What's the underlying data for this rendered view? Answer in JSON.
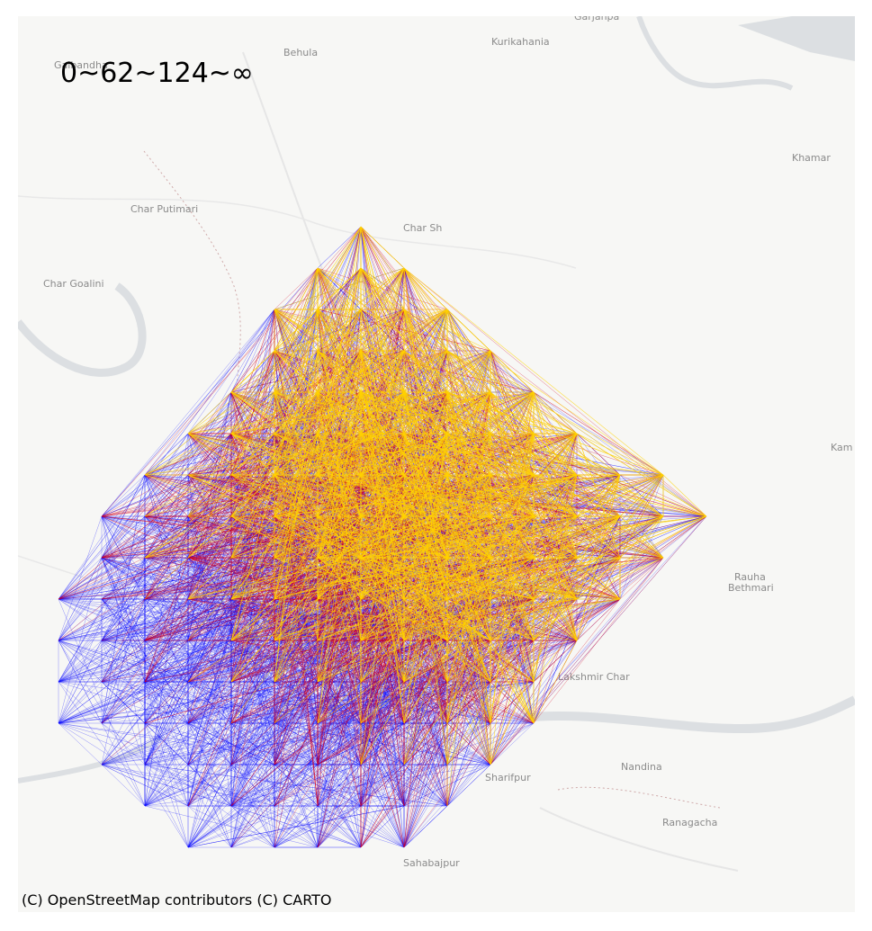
{
  "legend": {
    "text": "0~62~124~∞"
  },
  "attribution": "(C) OpenStreetMap contributors (C) CARTO",
  "place_labels": [
    {
      "id": "garjanpa",
      "text": "Garjanpa"
    },
    {
      "id": "kurikahania",
      "text": "Kurikahania"
    },
    {
      "id": "behula",
      "text": "Behula"
    },
    {
      "id": "gaibandha",
      "text": "Gaibandha"
    },
    {
      "id": "char-putimari",
      "text": "Char Putimari"
    },
    {
      "id": "char-goalini",
      "text": "Char Goalini"
    },
    {
      "id": "char-sh",
      "text": "Char Sh"
    },
    {
      "id": "khamar",
      "text": "Khamar"
    },
    {
      "id": "kam",
      "text": "Kam"
    },
    {
      "id": "rauha",
      "text": "Rauha"
    },
    {
      "id": "bethmari",
      "text": "Bethmari"
    },
    {
      "id": "lakshmir-char",
      "text": "Lakshmir Char"
    },
    {
      "id": "sharifpur",
      "text": "Sharifpur"
    },
    {
      "id": "nandina",
      "text": "Nandina"
    },
    {
      "id": "ranagacha",
      "text": "Ranagacha"
    },
    {
      "id": "sahabajpur",
      "text": "Sahabajpur"
    }
  ],
  "colors": {
    "land": "#f7f7f5",
    "water": "#d8dcdf",
    "road": "#e6e6e6",
    "boundary": "#c9a0a0",
    "low": "#0a0aff",
    "mid": "#d4001f",
    "high": "#ffd200"
  },
  "flow_bins": [
    0,
    62,
    124,
    "∞"
  ]
}
